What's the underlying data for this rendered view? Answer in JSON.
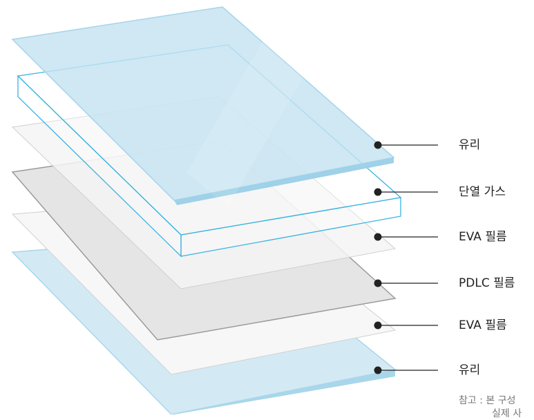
{
  "diagram": {
    "layers": [
      {
        "id": "glass-top",
        "label": "유리"
      },
      {
        "id": "insulating-glass",
        "label": "단열 가스"
      },
      {
        "id": "eva-film-top",
        "label": "EVA 필름"
      },
      {
        "id": "pdlc-film",
        "label": "PDLC 필름"
      },
      {
        "id": "eva-film-bottom",
        "label": "EVA 필름"
      },
      {
        "id": "glass-bottom",
        "label": "유리"
      }
    ],
    "note_line1": "참고 : 본 구성",
    "note_line2": "실제 사",
    "colors": {
      "glass_fill": "#cfe8f3",
      "glass_edge": "#9fd1e8",
      "gas_frame": "#39b3e0",
      "film_fill": "#f7f7f7",
      "film_edge": "#d4d4d4",
      "pdlc_fill": "#e4e4e4",
      "pdlc_edge": "#9a9a9a",
      "leader": "#222222"
    }
  }
}
